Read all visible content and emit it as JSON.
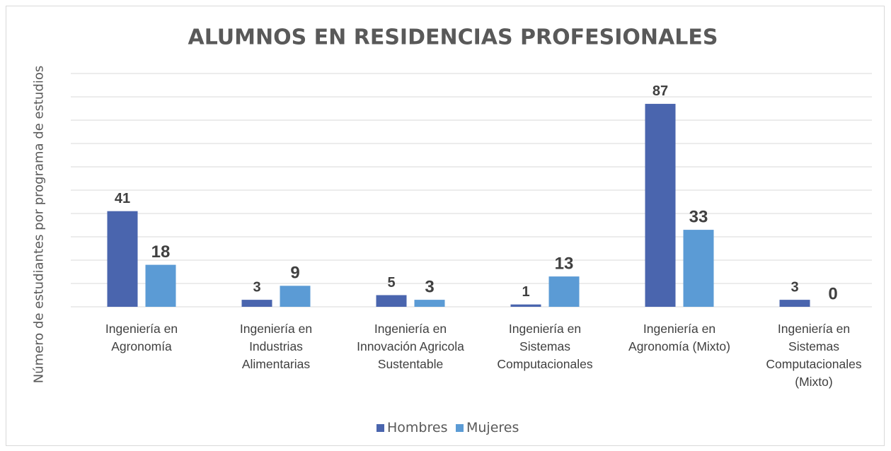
{
  "chart_data": {
    "type": "bar",
    "title": "ALUMNOS EN RESIDENCIAS PROFESIONALES",
    "y_label": "Número de estudiantes por programa de estudios",
    "categories": [
      "Ingeniería en Agronomía",
      "Ingeniería en Industrias Alimentarias",
      "Ingeniería en Innovación Agricola Sustentable",
      "Ingeniería en Sistemas Computacionales",
      "Ingeniería en Agronomía (Mixto)",
      "Ingeniería en Sistemas Computacionales (Mixto)"
    ],
    "series": [
      {
        "name": "Hombres",
        "color": "#4a65ae",
        "values": [
          41,
          3,
          5,
          1,
          87,
          3
        ]
      },
      {
        "name": "Mujeres",
        "color": "#5b9bd5",
        "values": [
          18,
          9,
          3,
          13,
          33,
          0
        ]
      }
    ],
    "ylim": [
      0,
      100
    ],
    "yticks": [
      0,
      10,
      20,
      30,
      40,
      50,
      60,
      70,
      80,
      90,
      100
    ],
    "grid": true
  }
}
